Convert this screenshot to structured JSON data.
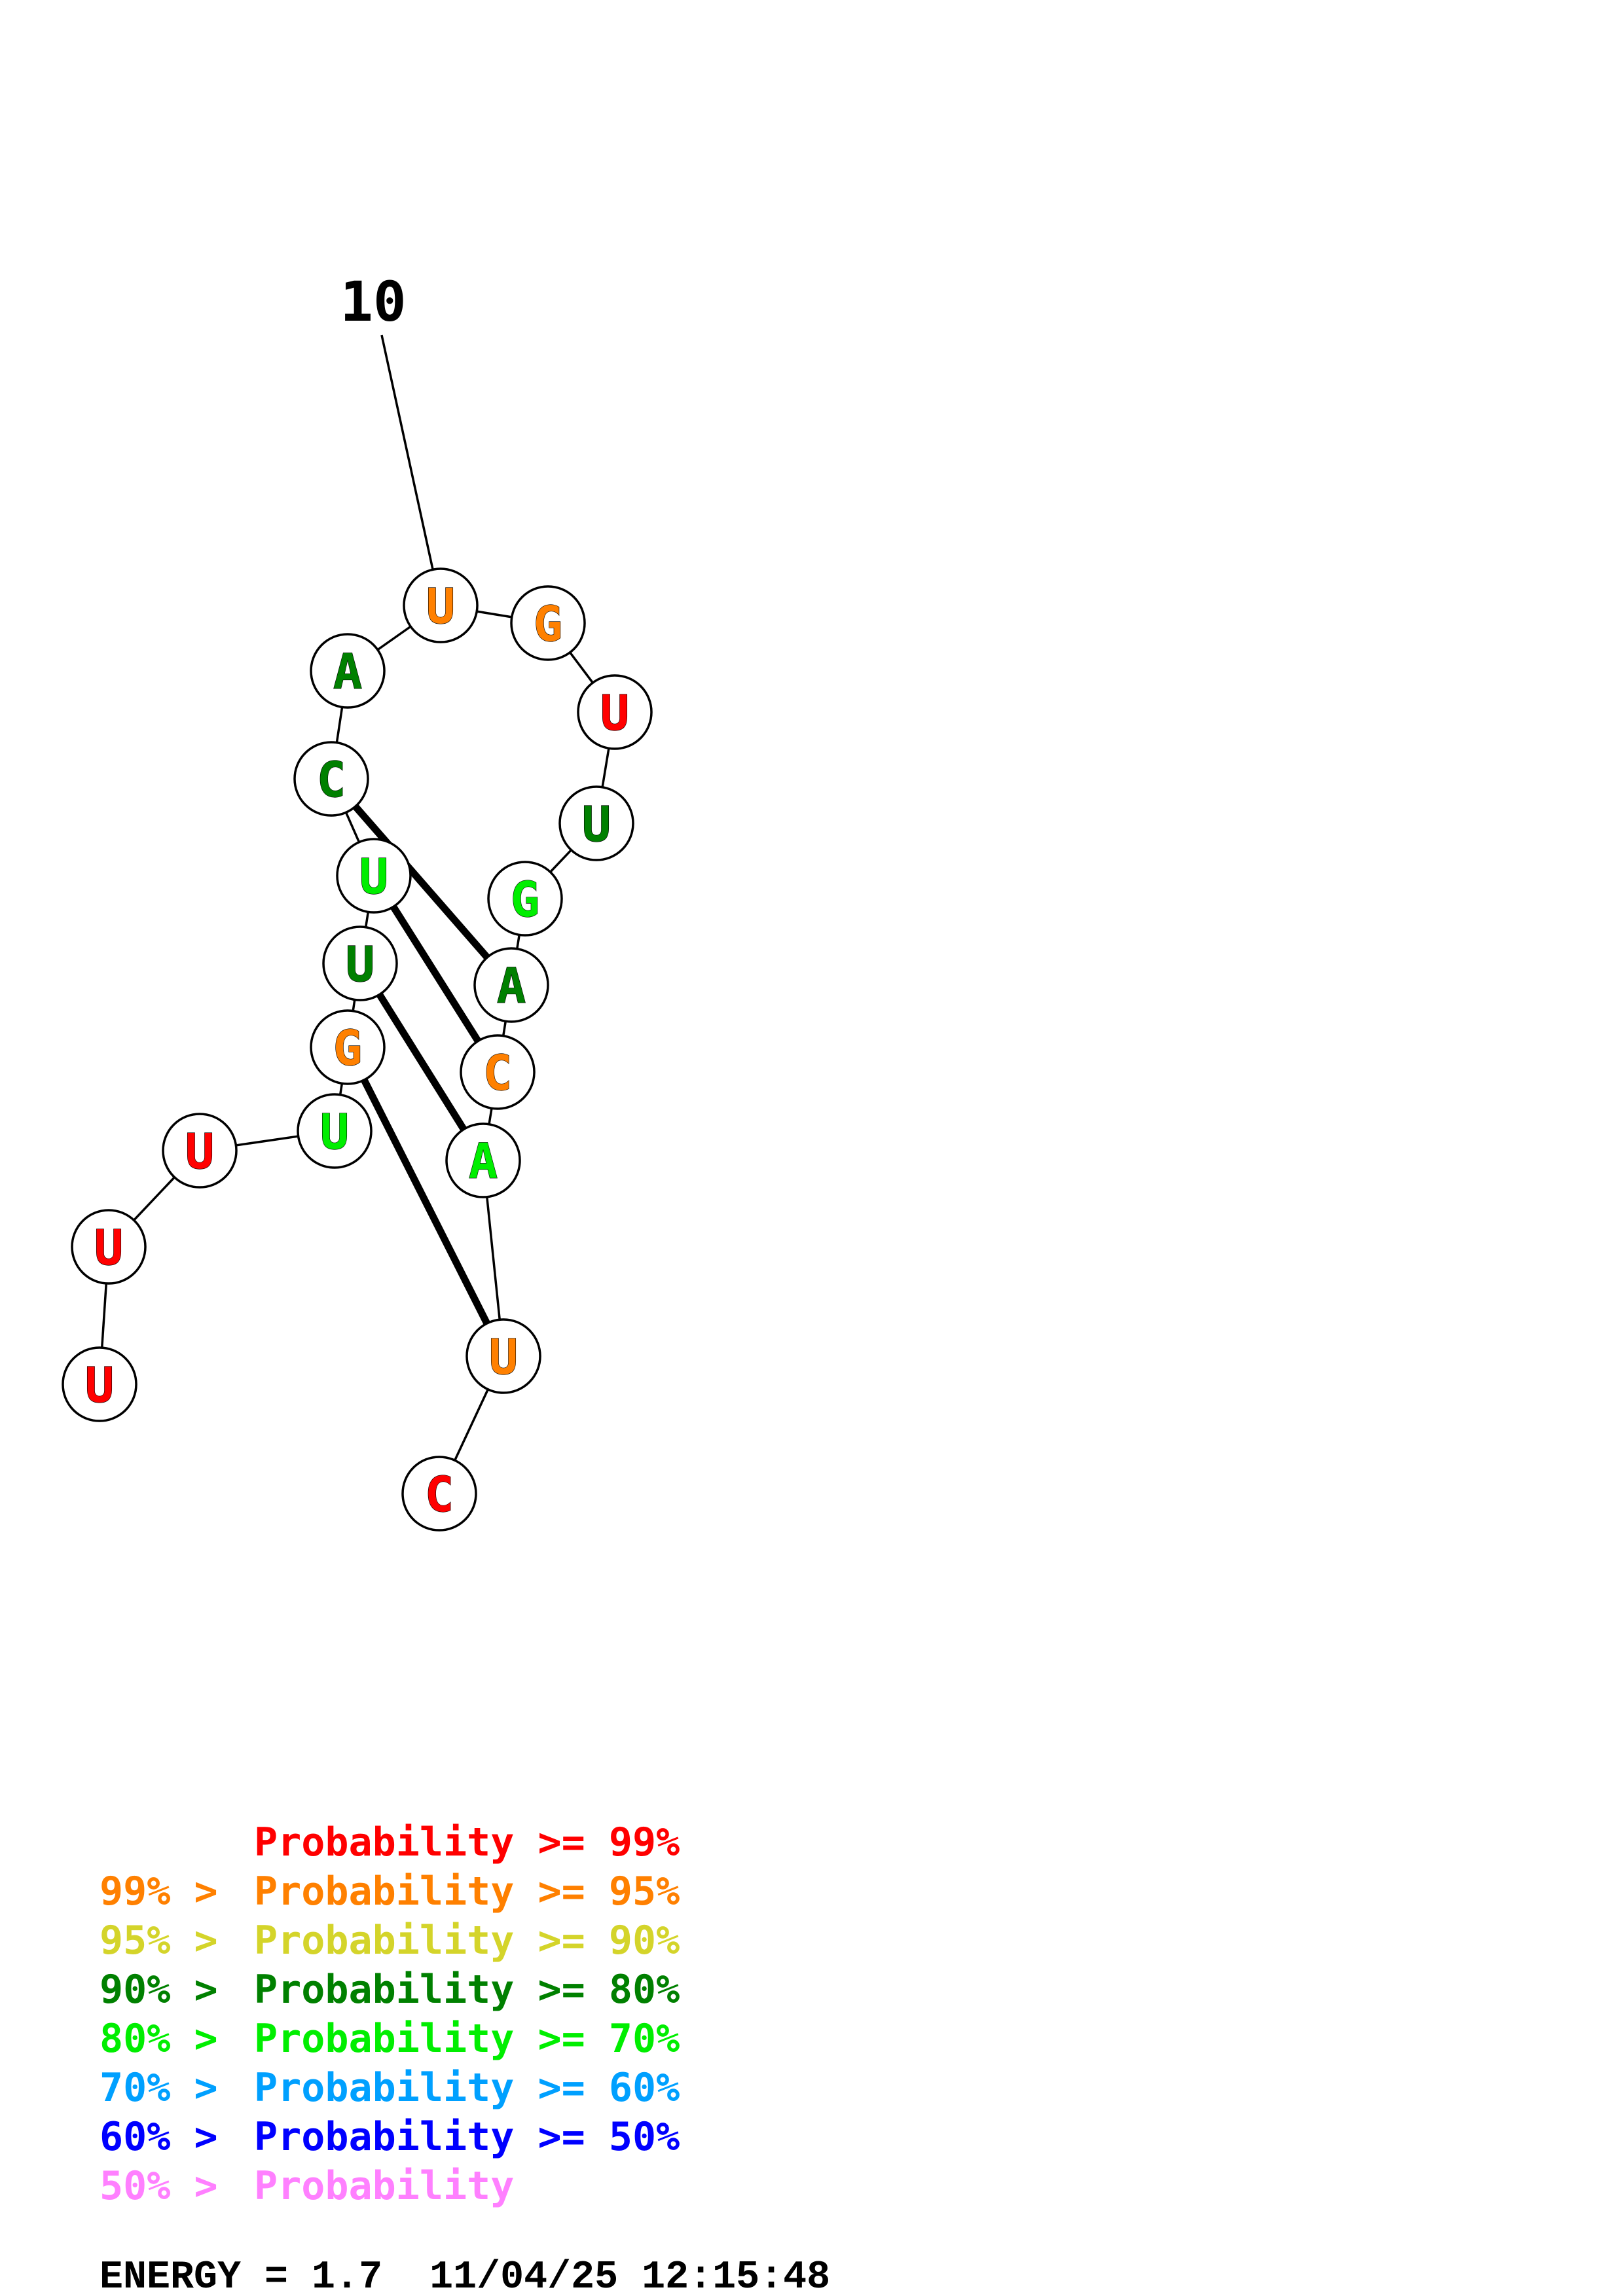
{
  "colors": {
    "p99": "#ff0000",
    "p95": "#ff8000",
    "p90": "#d4d42a",
    "p80": "#008000",
    "p70": "#00ee00",
    "p60": "#00a0ff",
    "p50": "#0000ff",
    "plow": "#ff80ff"
  },
  "nucleotides": [
    {
      "base": "U",
      "prob": "p99"
    },
    {
      "base": "U",
      "prob": "p99"
    },
    {
      "base": "U",
      "prob": "p99"
    },
    {
      "base": "U",
      "prob": "p70"
    },
    {
      "base": "G",
      "prob": "p95"
    },
    {
      "base": "U",
      "prob": "p80"
    },
    {
      "base": "U",
      "prob": "p70"
    },
    {
      "base": "C",
      "prob": "p80"
    },
    {
      "base": "A",
      "prob": "p80"
    },
    {
      "base": "U",
      "prob": "p95"
    },
    {
      "base": "G",
      "prob": "p95"
    },
    {
      "base": "U",
      "prob": "p99"
    },
    {
      "base": "U",
      "prob": "p80"
    },
    {
      "base": "G",
      "prob": "p70"
    },
    {
      "base": "A",
      "prob": "p80"
    },
    {
      "base": "C",
      "prob": "p95"
    },
    {
      "base": "A",
      "prob": "p70"
    },
    {
      "base": "U",
      "prob": "p95"
    },
    {
      "base": "C",
      "prob": "p99"
    }
  ],
  "pairs": [
    [
      4,
      17
    ],
    [
      5,
      16
    ],
    [
      6,
      15
    ],
    [
      7,
      14
    ]
  ],
  "index_label": {
    "position": 10,
    "text": "10"
  },
  "legend": [
    {
      "prefix": "    ",
      "mid": "Probability",
      "suffix": " >= 99%",
      "color": "p99"
    },
    {
      "prefix": "99% > ",
      "mid": "Probability",
      "suffix": " >= 95%",
      "color": "p95"
    },
    {
      "prefix": "95% > ",
      "mid": "Probability",
      "suffix": " >= 90%",
      "color": "p90"
    },
    {
      "prefix": "90% > ",
      "mid": "Probability",
      "suffix": " >= 80%",
      "color": "p80"
    },
    {
      "prefix": "80% > ",
      "mid": "Probability",
      "suffix": " >= 70%",
      "color": "p70"
    },
    {
      "prefix": "70% > ",
      "mid": "Probability",
      "suffix": " >= 60%",
      "color": "p60"
    },
    {
      "prefix": "60% > ",
      "mid": "Probability",
      "suffix": " >= 50%",
      "color": "p50"
    },
    {
      "prefix": "50% > ",
      "mid": "Probability",
      "suffix": "",
      "color": "plow"
    }
  ],
  "energy": "ENERGY = 1.7  11/04/25 12:15:48"
}
